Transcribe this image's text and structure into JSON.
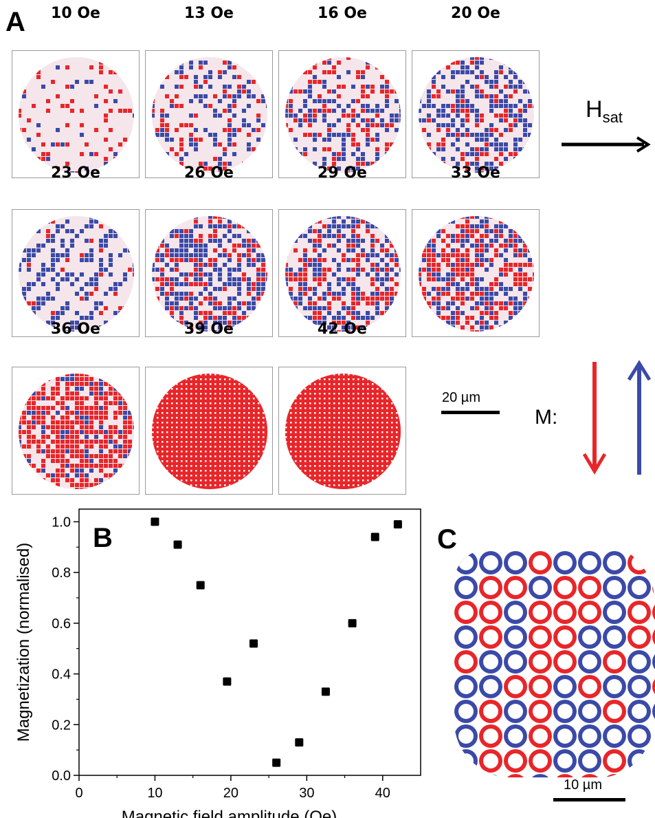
{
  "panels": {
    "a": "A",
    "b": "B",
    "c": "C"
  },
  "field_images": [
    {
      "label": "10 Oe",
      "style": "mixed_faint"
    },
    {
      "label": "13 Oe",
      "style": "mixed_low"
    },
    {
      "label": "16 Oe",
      "style": "mixed_mid"
    },
    {
      "label": "20 Oe",
      "style": "mixed_mid2"
    },
    {
      "label": "23 Oe",
      "style": "diag_blue"
    },
    {
      "label": "26 Oe",
      "style": "mixed_dense"
    },
    {
      "label": "29 Oe",
      "style": "mixed_dense"
    },
    {
      "label": "33 Oe",
      "style": "mixed_redish"
    },
    {
      "label": "36 Oe",
      "style": "mostly_red"
    },
    {
      "label": "39 Oe",
      "style": "full_red"
    },
    {
      "label": "42 Oe",
      "style": "full_red"
    }
  ],
  "hsat": {
    "main": "H",
    "sub": "sat"
  },
  "scalebar_a": "20 µm",
  "scalebar_c": "10 µm",
  "m_label": "M:",
  "colors": {
    "red": "#e8262a",
    "blue": "#3b4aa8",
    "grey": "#9a9a9a"
  },
  "chart_data": {
    "type": "scatter",
    "xlabel": "Magnetic field amplitude (Oe)",
    "ylabel": "Magnetization (normalised)",
    "xlim": [
      0,
      45
    ],
    "ylim": [
      0,
      1.05
    ],
    "xticks": [
      "0",
      "10",
      "20",
      "30",
      "40"
    ],
    "yticks": [
      "0.0",
      "0.2",
      "0.4",
      "0.6",
      "0.8",
      "1.0"
    ],
    "points": [
      {
        "x": 10,
        "y": 1.0
      },
      {
        "x": 13,
        "y": 0.91
      },
      {
        "x": 16,
        "y": 0.75
      },
      {
        "x": 19.5,
        "y": 0.37
      },
      {
        "x": 23,
        "y": 0.52
      },
      {
        "x": 26,
        "y": 0.05
      },
      {
        "x": 29,
        "y": 0.13
      },
      {
        "x": 32.5,
        "y": 0.33
      },
      {
        "x": 36,
        "y": 0.6
      },
      {
        "x": 39,
        "y": 0.94
      },
      {
        "x": 42,
        "y": 0.99
      }
    ]
  }
}
